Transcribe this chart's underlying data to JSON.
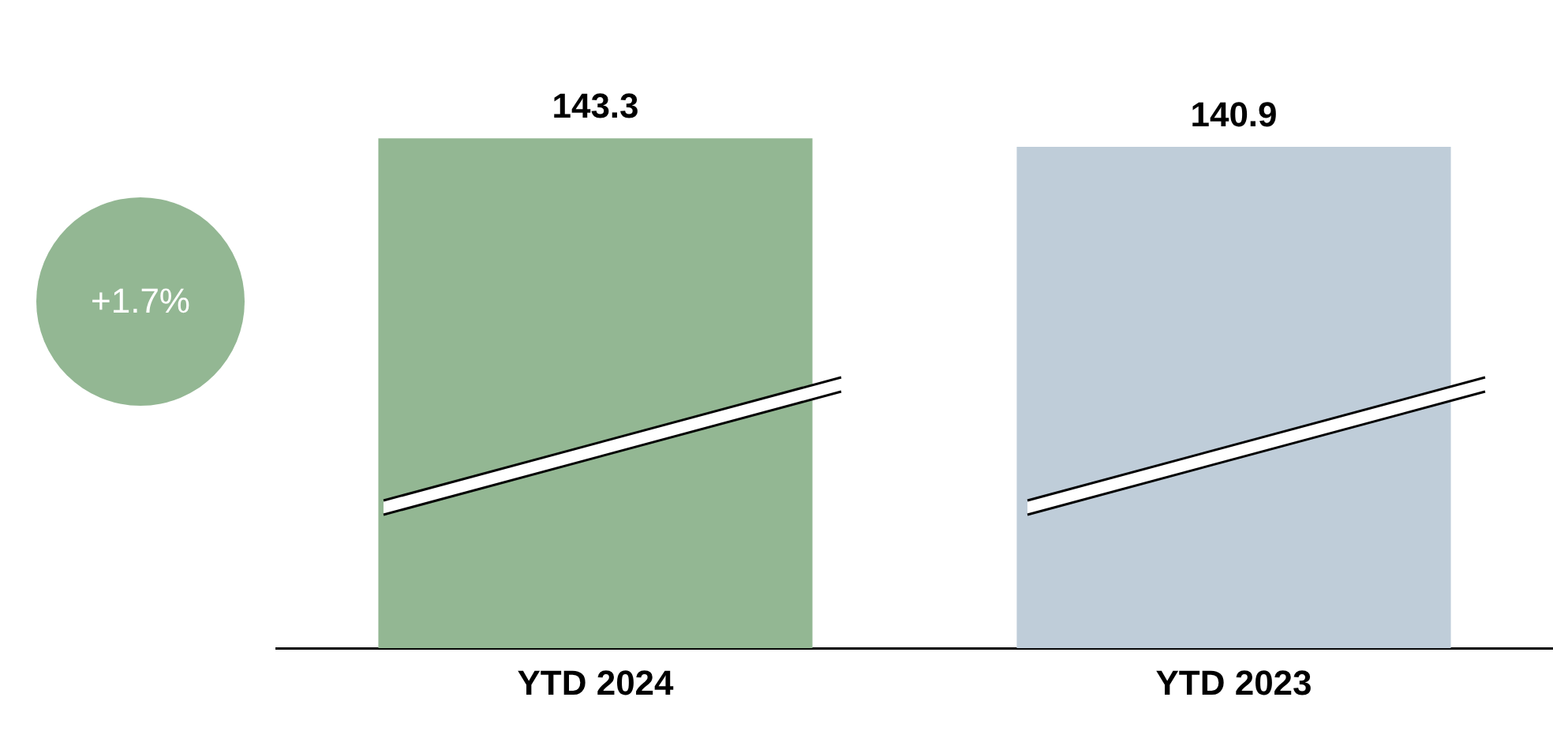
{
  "chart_data": {
    "type": "bar",
    "categories": [
      "YTD 2024",
      "YTD 2023"
    ],
    "values": [
      143.3,
      140.9
    ],
    "colors": [
      "#93b793",
      "#bfcdd9"
    ],
    "data_labels": true,
    "grid": false,
    "legend": false,
    "tick_labels": "x",
    "annotations": [
      "+1.7%"
    ]
  }
}
